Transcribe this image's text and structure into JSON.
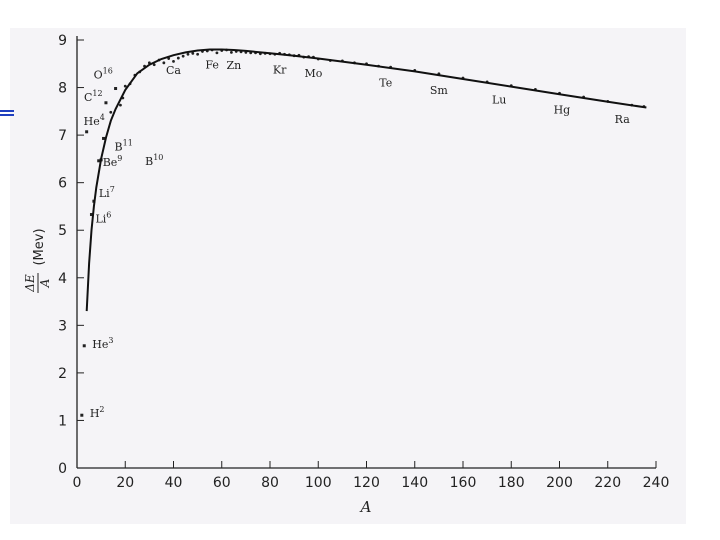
{
  "chart_data": {
    "type": "line",
    "xlabel": "A",
    "ylabel_fraction_top": "ΔE",
    "ylabel_fraction_bottom": "A",
    "ylabel_unit": "(Mev)",
    "xlim": [
      0,
      240
    ],
    "ylim": [
      0,
      9
    ],
    "x_ticks": [
      0,
      20,
      40,
      60,
      80,
      100,
      120,
      140,
      160,
      180,
      200,
      220,
      240
    ],
    "y_ticks": [
      0,
      1,
      2,
      3,
      4,
      5,
      6,
      7,
      8,
      9
    ],
    "curve": {
      "x": [
        4,
        5,
        6,
        7,
        8,
        10,
        12,
        14,
        16,
        20,
        25,
        30,
        35,
        40,
        45,
        50,
        55,
        60,
        65,
        70,
        80,
        90,
        100,
        120,
        140,
        160,
        180,
        200,
        220,
        236
      ],
      "y": [
        3.3,
        4.3,
        5.0,
        5.5,
        5.9,
        6.5,
        6.95,
        7.3,
        7.55,
        7.95,
        8.3,
        8.48,
        8.6,
        8.68,
        8.74,
        8.78,
        8.8,
        8.8,
        8.79,
        8.77,
        8.72,
        8.67,
        8.61,
        8.48,
        8.34,
        8.18,
        8.02,
        7.86,
        7.7,
        7.58
      ]
    },
    "points": [
      {
        "x": 2,
        "y": 1.11,
        "label": "H",
        "sup": "2"
      },
      {
        "x": 3,
        "y": 2.57,
        "label": "He",
        "sup": "3"
      },
      {
        "x": 4,
        "y": 7.07,
        "label": "He",
        "sup": "4"
      },
      {
        "x": 6,
        "y": 5.33,
        "label": "Li",
        "sup": "6"
      },
      {
        "x": 7,
        "y": 5.61,
        "label": "Li",
        "sup": "7"
      },
      {
        "x": 9,
        "y": 6.46,
        "label": "Be",
        "sup": "9"
      },
      {
        "x": 10,
        "y": 6.48,
        "label": "B",
        "sup": "10"
      },
      {
        "x": 11,
        "y": 6.93,
        "label": "B",
        "sup": "11"
      },
      {
        "x": 12,
        "y": 7.68,
        "label": "C",
        "sup": "12"
      },
      {
        "x": 16,
        "y": 7.98,
        "label": "O",
        "sup": "16"
      }
    ],
    "scatter": {
      "x": [
        14,
        18,
        19,
        20,
        22,
        24,
        26,
        28,
        30,
        32,
        34,
        36,
        38,
        40,
        42,
        44,
        46,
        48,
        50,
        52,
        54,
        56,
        58,
        60,
        62,
        64,
        66,
        68,
        70,
        72,
        74,
        76,
        78,
        80,
        82,
        84,
        86,
        88,
        90,
        92,
        94,
        96,
        98,
        100,
        105,
        110,
        115,
        120,
        125,
        130,
        140,
        150,
        160,
        170,
        180,
        190,
        200,
        210,
        220,
        230,
        235
      ],
      "y": [
        7.48,
        7.63,
        7.78,
        8.03,
        8.08,
        8.26,
        8.33,
        8.45,
        8.52,
        8.48,
        8.58,
        8.52,
        8.61,
        8.55,
        8.62,
        8.66,
        8.7,
        8.72,
        8.7,
        8.76,
        8.77,
        8.79,
        8.73,
        8.78,
        8.79,
        8.74,
        8.76,
        8.75,
        8.74,
        8.73,
        8.73,
        8.71,
        8.72,
        8.71,
        8.7,
        8.72,
        8.7,
        8.69,
        8.67,
        8.68,
        8.64,
        8.65,
        8.64,
        8.6,
        8.57,
        8.56,
        8.52,
        8.5,
        8.45,
        8.43,
        8.36,
        8.29,
        8.2,
        8.12,
        8.04,
        7.96,
        7.88,
        7.8,
        7.71,
        7.63,
        7.6
      ]
    },
    "element_labels": [
      {
        "text": "Ca",
        "x": 40
      },
      {
        "text": "Fe",
        "x": 56
      },
      {
        "text": "Zn",
        "x": 65
      },
      {
        "text": "Kr",
        "x": 84
      },
      {
        "text": "Mo",
        "x": 98
      },
      {
        "text": "Te",
        "x": 128
      },
      {
        "text": "Sm",
        "x": 150
      },
      {
        "text": "Lu",
        "x": 175
      },
      {
        "text": "Hg",
        "x": 201
      },
      {
        "text": "Ra",
        "x": 226
      }
    ],
    "colors": {
      "curve": "#111111",
      "points": "#222222",
      "background": "#f5f4f7",
      "accent_mark": "#1f3fbf"
    },
    "grid": false
  }
}
